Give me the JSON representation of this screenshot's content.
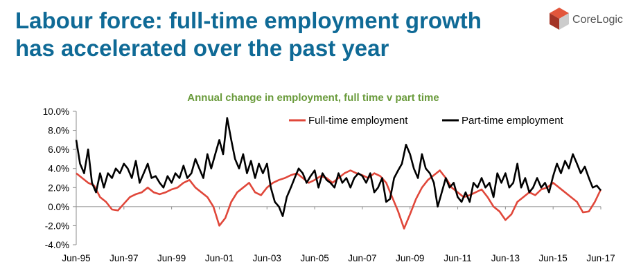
{
  "slide": {
    "title_line1": "Labour force: full-time employment growth",
    "title_line2": "has accelerated over the past year"
  },
  "logo": {
    "text": "CoreLogic",
    "icon": "corelogic-cube-logo",
    "colors": [
      "#e2563b",
      "#a33426",
      "#cccccc"
    ]
  },
  "chart_data": {
    "type": "line",
    "title": "Annual change in employment, full time v part time",
    "xlabel": "",
    "ylabel": "",
    "ylim": [
      -4.0,
      10.0
    ],
    "y_ticks": [
      "10.0%",
      "8.0%",
      "6.0%",
      "4.0%",
      "2.0%",
      "0.0%",
      "-2.0%",
      "-4.0%"
    ],
    "y_tick_values": [
      10,
      8,
      6,
      4,
      2,
      0,
      -2,
      -4
    ],
    "x_tick_labels": [
      "Jun-95",
      "Jun-97",
      "Jun-99",
      "Jun-01",
      "Jun-03",
      "Jun-05",
      "Jun-07",
      "Jun-09",
      "Jun-11",
      "Jun-13",
      "Jun-15",
      "Jun-17"
    ],
    "xlim": [
      1995.42,
      2017.42
    ],
    "legend_position": "top",
    "grid": false,
    "series": [
      {
        "name": "Full-time employment",
        "color": "#e0473a",
        "x": [
          1995.42,
          1995.67,
          1995.92,
          1996.17,
          1996.42,
          1996.67,
          1996.92,
          1997.17,
          1997.42,
          1997.67,
          1997.92,
          1998.17,
          1998.42,
          1998.67,
          1998.92,
          1999.17,
          1999.42,
          1999.67,
          1999.92,
          2000.17,
          2000.42,
          2000.67,
          2000.92,
          2001.17,
          2001.42,
          2001.67,
          2001.92,
          2002.17,
          2002.42,
          2002.67,
          2002.92,
          2003.17,
          2003.42,
          2003.67,
          2003.92,
          2004.17,
          2004.42,
          2004.67,
          2004.92,
          2005.17,
          2005.42,
          2005.67,
          2005.92,
          2006.17,
          2006.42,
          2006.67,
          2006.92,
          2007.17,
          2007.42,
          2007.67,
          2007.92,
          2008.17,
          2008.42,
          2008.67,
          2008.92,
          2009.17,
          2009.42,
          2009.67,
          2009.92,
          2010.17,
          2010.42,
          2010.67,
          2010.92,
          2011.17,
          2011.42,
          2011.67,
          2011.92,
          2012.17,
          2012.42,
          2012.67,
          2012.92,
          2013.17,
          2013.42,
          2013.67,
          2013.92,
          2014.17,
          2014.42,
          2014.67,
          2014.92,
          2015.17,
          2015.42,
          2015.67,
          2015.92,
          2016.17,
          2016.42,
          2016.67,
          2016.92,
          2017.17,
          2017.42
        ],
        "values": [
          3.5,
          3.0,
          2.5,
          2.2,
          1.0,
          0.5,
          -0.3,
          -0.4,
          0.3,
          1.0,
          1.3,
          1.5,
          2.0,
          1.5,
          1.3,
          1.5,
          1.8,
          2.0,
          2.5,
          2.8,
          2.0,
          1.5,
          1.0,
          0.0,
          -2.0,
          -1.2,
          0.5,
          1.5,
          2.0,
          2.5,
          1.5,
          1.2,
          2.0,
          2.5,
          2.8,
          3.0,
          3.3,
          3.5,
          3.0,
          2.5,
          2.8,
          3.2,
          3.0,
          2.5,
          3.0,
          3.5,
          3.8,
          3.5,
          3.3,
          3.0,
          3.5,
          3.2,
          2.5,
          1.0,
          -0.5,
          -2.3,
          -0.8,
          0.8,
          2.0,
          2.8,
          3.3,
          3.8,
          3.0,
          2.0,
          1.5,
          1.0,
          1.2,
          1.5,
          1.8,
          1.0,
          0.0,
          -0.5,
          -1.4,
          -0.8,
          0.5,
          1.0,
          1.5,
          1.2,
          1.8,
          2.0,
          2.5,
          2.0,
          1.5,
          1.0,
          0.5,
          -0.6,
          -0.5,
          0.5,
          1.8
        ]
      },
      {
        "name": "Part-time employment",
        "color": "#000000",
        "x": [
          1995.42,
          1995.58,
          1995.75,
          1995.92,
          1996.08,
          1996.25,
          1996.42,
          1996.58,
          1996.75,
          1996.92,
          1997.08,
          1997.25,
          1997.42,
          1997.58,
          1997.75,
          1997.92,
          1998.08,
          1998.25,
          1998.42,
          1998.58,
          1998.75,
          1998.92,
          1999.08,
          1999.25,
          1999.42,
          1999.58,
          1999.75,
          1999.92,
          2000.08,
          2000.25,
          2000.42,
          2000.58,
          2000.75,
          2000.92,
          2001.08,
          2001.25,
          2001.42,
          2001.58,
          2001.75,
          2001.92,
          2002.08,
          2002.25,
          2002.42,
          2002.58,
          2002.75,
          2002.92,
          2003.08,
          2003.25,
          2003.42,
          2003.58,
          2003.75,
          2003.92,
          2004.08,
          2004.25,
          2004.42,
          2004.58,
          2004.75,
          2004.92,
          2005.08,
          2005.25,
          2005.42,
          2005.58,
          2005.75,
          2005.92,
          2006.08,
          2006.25,
          2006.42,
          2006.58,
          2006.75,
          2006.92,
          2007.08,
          2007.25,
          2007.42,
          2007.58,
          2007.75,
          2007.92,
          2008.08,
          2008.25,
          2008.42,
          2008.58,
          2008.75,
          2008.92,
          2009.08,
          2009.25,
          2009.42,
          2009.58,
          2009.75,
          2009.92,
          2010.08,
          2010.25,
          2010.42,
          2010.58,
          2010.75,
          2010.92,
          2011.08,
          2011.25,
          2011.42,
          2011.58,
          2011.75,
          2011.92,
          2012.08,
          2012.25,
          2012.42,
          2012.58,
          2012.75,
          2012.92,
          2013.08,
          2013.25,
          2013.42,
          2013.58,
          2013.75,
          2013.92,
          2014.08,
          2014.25,
          2014.42,
          2014.58,
          2014.75,
          2014.92,
          2015.08,
          2015.25,
          2015.42,
          2015.58,
          2015.75,
          2015.92,
          2016.08,
          2016.25,
          2016.42,
          2016.58,
          2016.75,
          2016.92,
          2017.08,
          2017.25,
          2017.42
        ],
        "values": [
          7.0,
          4.5,
          3.5,
          6.0,
          2.5,
          1.5,
          3.5,
          2.0,
          3.5,
          3.0,
          4.0,
          3.5,
          4.5,
          4.0,
          3.0,
          4.8,
          2.5,
          3.5,
          4.5,
          3.0,
          3.2,
          2.5,
          2.0,
          3.2,
          2.5,
          3.5,
          3.0,
          4.3,
          3.0,
          3.5,
          5.0,
          4.0,
          3.0,
          5.5,
          4.0,
          5.5,
          7.0,
          5.5,
          9.3,
          7.0,
          5.0,
          4.0,
          5.5,
          3.5,
          4.8,
          3.0,
          4.5,
          3.5,
          4.5,
          2.0,
          0.5,
          0.0,
          -1.0,
          1.0,
          2.0,
          3.0,
          4.0,
          3.5,
          2.5,
          3.2,
          3.8,
          2.0,
          3.5,
          2.8,
          2.5,
          2.0,
          3.5,
          2.5,
          3.0,
          2.0,
          3.0,
          3.5,
          3.2,
          2.5,
          3.5,
          1.5,
          2.0,
          3.0,
          0.5,
          0.8,
          3.0,
          3.8,
          4.5,
          6.5,
          5.5,
          4.0,
          3.0,
          5.5,
          4.0,
          3.5,
          2.5,
          0.0,
          1.5,
          3.0,
          2.0,
          2.5,
          1.0,
          0.5,
          1.5,
          0.5,
          2.5,
          2.0,
          3.0,
          2.0,
          2.5,
          1.0,
          3.5,
          2.5,
          3.5,
          2.0,
          2.5,
          4.5,
          2.0,
          3.0,
          1.5,
          2.0,
          3.0,
          2.0,
          2.5,
          1.5,
          3.2,
          4.5,
          3.5,
          4.8,
          4.0,
          5.5,
          4.5,
          3.5,
          4.2,
          3.0,
          2.0,
          2.2,
          1.7
        ]
      }
    ]
  }
}
